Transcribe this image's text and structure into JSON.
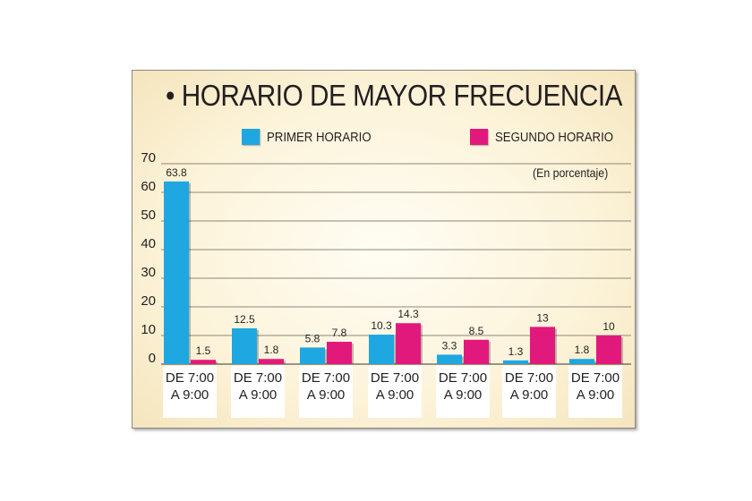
{
  "chart_data": {
    "type": "bar",
    "title": "HORARIO DE MAYOR FRECUENCIA",
    "unit_note": "(En porcentaje)",
    "categories": [
      [
        "DE 7:00",
        "A 9:00"
      ],
      [
        "DE 7:00",
        "A 9:00"
      ],
      [
        "DE 7:00",
        "A 9:00"
      ],
      [
        "DE 7:00",
        "A 9:00"
      ],
      [
        "DE 7:00",
        "A 9:00"
      ],
      [
        "DE 7:00",
        "A 9:00"
      ],
      [
        "DE 7:00",
        "A 9:00"
      ]
    ],
    "series": [
      {
        "name": "PRIMER HORARIO",
        "color": "#1ea7e0",
        "values": [
          63.8,
          12.5,
          5.8,
          10.3,
          3.3,
          1.3,
          1.8
        ],
        "labels": [
          "63.8",
          "12.5",
          "5.8",
          "10.3",
          "3.3",
          "1.3",
          "1.8"
        ]
      },
      {
        "name": "SEGUNDO HORARIO",
        "color": "#e2197d",
        "values": [
          1.5,
          1.8,
          7.8,
          14.3,
          8.5,
          13,
          10
        ],
        "labels": [
          "1.5",
          "1.8",
          "7.8",
          "14.3",
          "8.5",
          "13",
          "10"
        ]
      }
    ],
    "yticks": [
      "0",
      "10",
      "20",
      "30",
      "40",
      "50",
      "60",
      "70"
    ],
    "ylim": [
      0,
      70
    ],
    "grid": true,
    "legend_position": "top"
  }
}
